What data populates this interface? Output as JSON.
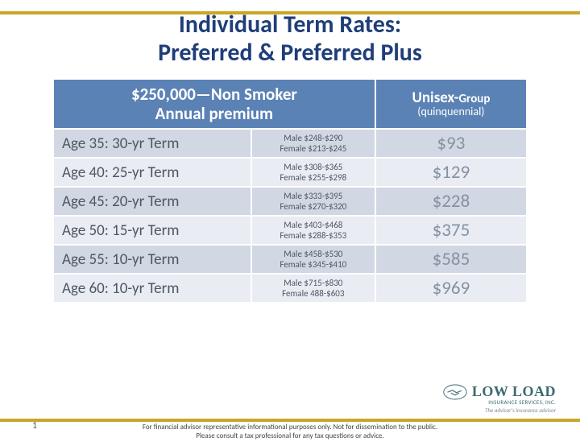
{
  "title_line1": "Individual Term Rates:",
  "title_line2": "Preferred & Preferred Plus",
  "header": {
    "left_line1": "$250,000—Non Smoker",
    "left_line2": "Annual premium",
    "right_main": "Unisex-",
    "right_sub": "Group",
    "right_sub2": "(quinquennial)"
  },
  "rows": [
    {
      "age": "Age 35: 30-yr Term",
      "male": "Male $248-$290",
      "female": "Female $213-$245",
      "group": "$93"
    },
    {
      "age": "Age 40: 25-yr Term",
      "male": "Male $308-$365",
      "female": "Female $255-$298",
      "group": "$129"
    },
    {
      "age": "Age 45: 20-yr Term",
      "male": "Male $333-$395",
      "female": "Female $270-$320",
      "group": "$228"
    },
    {
      "age": "Age 50: 15-yr Term",
      "male": "Male $403-$468",
      "female": "Female $288-$353",
      "group": "$375"
    },
    {
      "age": "Age 55: 10-yr Term",
      "male": "Male $458-$530",
      "female": "Female $345-$410",
      "group": "$585"
    },
    {
      "age": "Age 60: 10-yr Term",
      "male": "Male $715-$830",
      "female": "Female 488-$603",
      "group": "$969"
    }
  ],
  "logo": {
    "main": "LOW LOAD",
    "sub": "INSURANCE SERVICES, INC.",
    "tag": "The advisor's insurance advisor"
  },
  "page_number": "1",
  "disclaimer_line1": "For financial advisor representative informational purposes only. Not for dissemination to the public.",
  "disclaimer_line2": "Please consult a tax professional for any tax questions or advice.",
  "colors": {
    "title": "#1f3e79",
    "gold": "#c9a627",
    "header_bg": "#5b82b5",
    "row_odd": "#d2d8e3",
    "row_even": "#e9ecf2",
    "text_body": "#4f5662",
    "text_group": "#8692a3",
    "logo": "#3a6a6f"
  }
}
